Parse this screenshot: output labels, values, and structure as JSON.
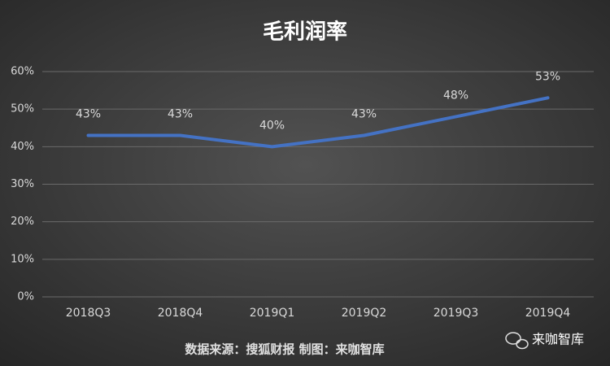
{
  "chart_data": {
    "type": "line",
    "title": "毛利润率",
    "categories": [
      "2018Q3",
      "2018Q4",
      "2019Q1",
      "2019Q2",
      "2019Q3",
      "2019Q4"
    ],
    "series": [
      {
        "name": "毛利润率",
        "color": "#4472c4",
        "values": [
          43,
          43,
          40,
          43,
          48,
          53
        ],
        "value_labels": [
          "43%",
          "43%",
          "40%",
          "43%",
          "48%",
          "53%"
        ]
      }
    ],
    "ylim": [
      0,
      60
    ],
    "yticks": [
      {
        "value": 0,
        "label": "0%"
      },
      {
        "value": 10,
        "label": "10%"
      },
      {
        "value": 20,
        "label": "20%"
      },
      {
        "value": 30,
        "label": "30%"
      },
      {
        "value": 40,
        "label": "40%"
      },
      {
        "value": 50,
        "label": "50%"
      },
      {
        "value": 60,
        "label": "60%"
      }
    ],
    "grid": true,
    "source": "数据来源：搜狐财报 制图：来咖智库",
    "watermark": "来咖智库"
  }
}
